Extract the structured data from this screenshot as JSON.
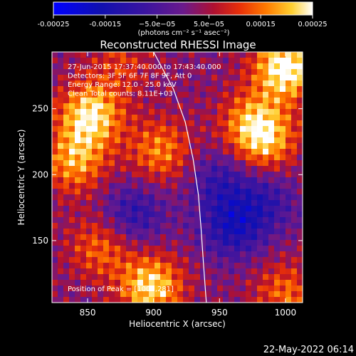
{
  "chart_data": {
    "type": "heatmap",
    "title": "Reconstructed RHESSI Image",
    "xlabel": "Heliocentric X (arcsec)",
    "ylabel": "Heliocentric Y (arcsec)",
    "xlim": [
      823,
      1013
    ],
    "ylim": [
      103,
      293
    ],
    "x_ticks": [
      "850",
      "900",
      "950",
      "1000"
    ],
    "x_tick_values": [
      850,
      900,
      950,
      1000
    ],
    "y_ticks": [
      "150",
      "200",
      "250"
    ],
    "y_tick_values": [
      150,
      200,
      250
    ],
    "colorbar": {
      "ticks": [
        "-0.00025",
        "-0.00015",
        "−5.0e−05",
        "5.0e−05",
        "0.00015",
        "0.00025"
      ],
      "tick_values": [
        -0.00025,
        -0.00015,
        -5e-05,
        5e-05,
        0.00015,
        0.00025
      ],
      "range": [
        -0.00025,
        0.00025
      ],
      "unit_label": "(photons cm⁻² s⁻¹ asec⁻²)"
    },
    "annotations": [
      "27-Jun-2015 17:37:40.000 to 17:43:40.000",
      "Detectors: 3F 5F 6F 7F 8F 9F, Att 0",
      "Energy Range: 12.0 - 25.0 keV",
      "Clean     Total counts: 8.11E+03"
    ],
    "peak_label": "Position of Peak = [1000,281]",
    "limb_curve": [
      [
        900,
        293
      ],
      [
        915,
        265
      ],
      [
        924,
        240
      ],
      [
        930,
        212
      ],
      [
        934,
        185
      ],
      [
        936,
        160
      ],
      [
        938,
        130
      ],
      [
        940,
        103
      ]
    ],
    "sources": [
      {
        "x": 852,
        "y": 245,
        "value": 0.00022
      },
      {
        "x": 840,
        "y": 210,
        "value": 0.00016
      },
      {
        "x": 1000,
        "y": 281,
        "value": 0.00025
      },
      {
        "x": 985,
        "y": 225,
        "value": 0.00015
      },
      {
        "x": 975,
        "y": 240,
        "value": 0.00014
      },
      {
        "x": 898,
        "y": 115,
        "value": 0.00021
      },
      {
        "x": 860,
        "y": 145,
        "value": 0.00012
      },
      {
        "x": 1000,
        "y": 110,
        "value": 0.00012
      },
      {
        "x": 905,
        "y": 218,
        "value": 0.00014
      },
      {
        "x": 875,
        "y": 285,
        "value": 8e-05
      },
      {
        "x": 950,
        "y": 195,
        "value": -0.0001
      },
      {
        "x": 960,
        "y": 160,
        "value": -0.00015
      },
      {
        "x": 885,
        "y": 170,
        "value": -0.00012
      },
      {
        "x": 985,
        "y": 180,
        "value": -0.0001
      }
    ]
  },
  "timestamp": "22-May-2022 06:14"
}
